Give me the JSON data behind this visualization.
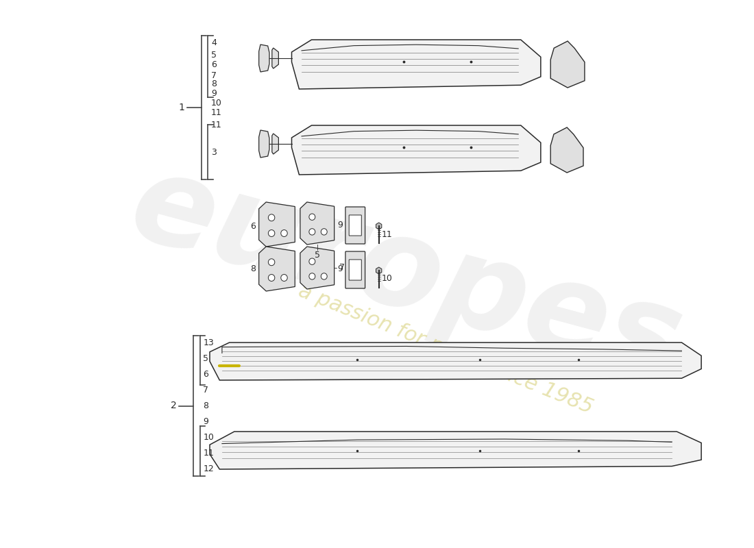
{
  "bg_color": "#ffffff",
  "line_color": "#2a2a2a",
  "bracket_color": "#444444",
  "watermark_color1": "#c8c8c8",
  "watermark_color2": "#d4cc70",
  "part_face": "#f2f2f2",
  "part_face2": "#e0e0e0",
  "group1_nums": [
    "4",
    "5",
    "6",
    "7",
    "8",
    "9",
    "10",
    "11"
  ],
  "group1_sub_nums": [
    "3"
  ],
  "group2_nums": [
    "13",
    "5",
    "6",
    "7",
    "8",
    "9",
    "10",
    "11",
    "12"
  ],
  "screw_color": "#888888"
}
